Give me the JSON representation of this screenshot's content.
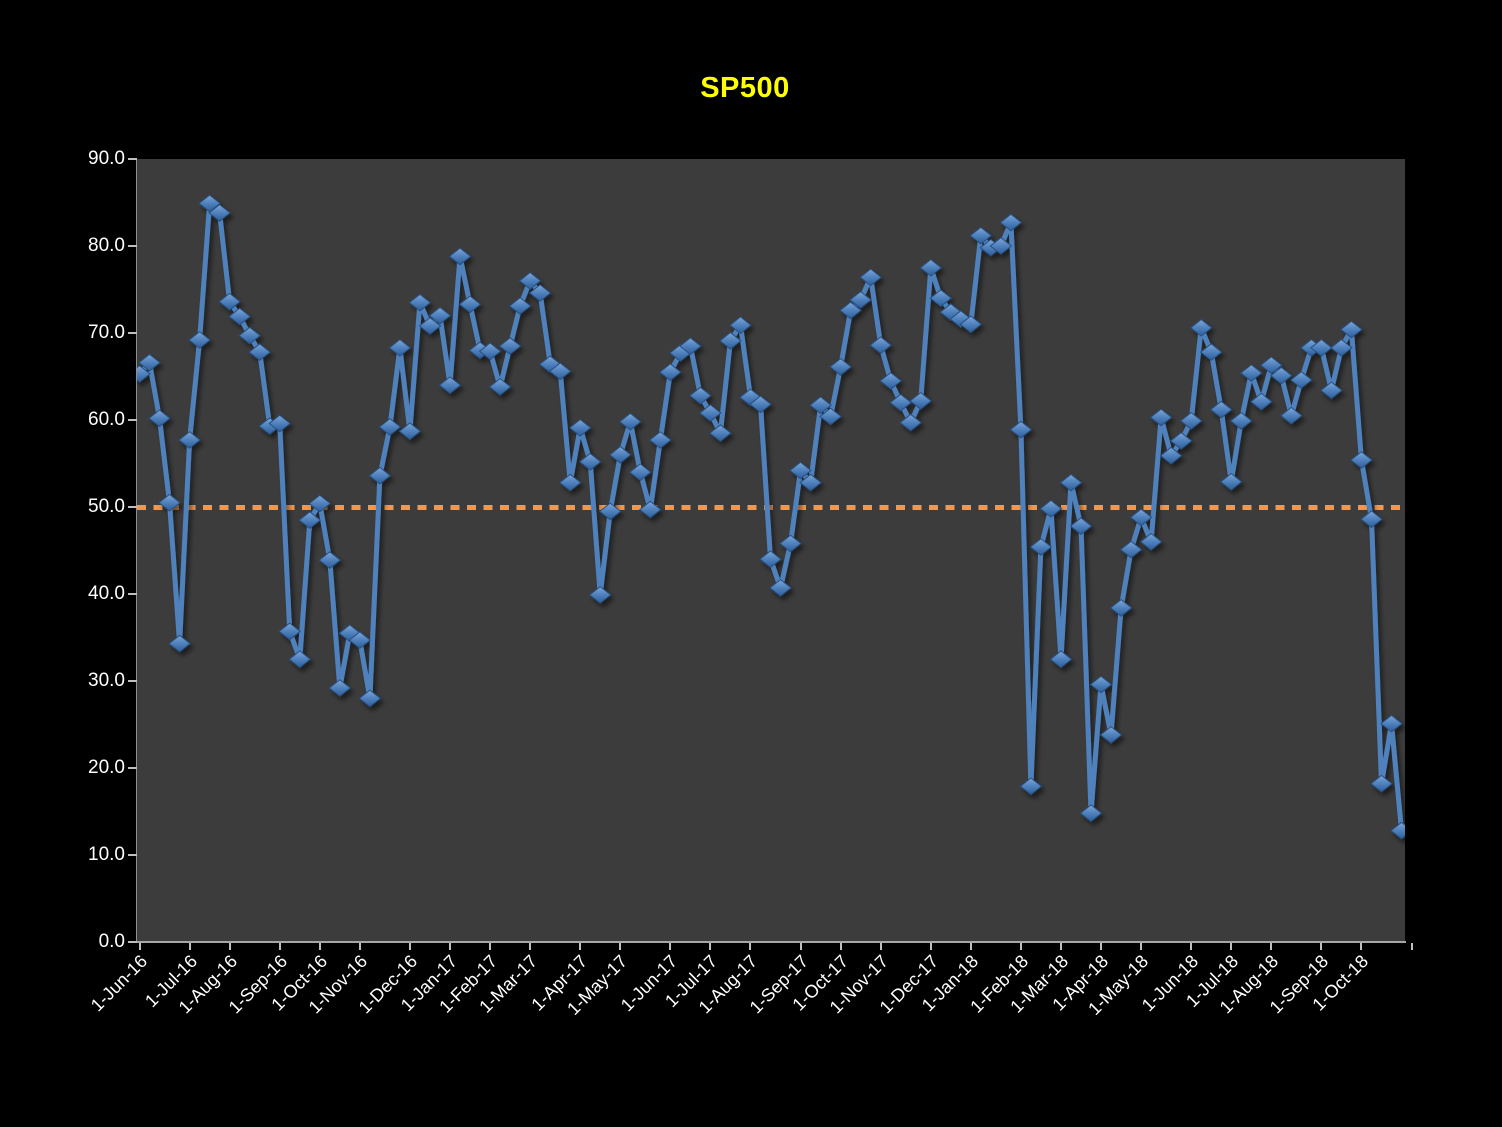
{
  "title": "SP500",
  "colors": {
    "background": "#000000",
    "plot_background": "#3c3c3c",
    "title": "#ffff00",
    "axis_text": "#ffffff",
    "axis_line": "#a6a6a6",
    "tick_mark": "#bfbfbf",
    "series_line": "#4f81bd",
    "marker_top": "#7ea6d8",
    "marker_mid": "#4f81bd",
    "marker_bottom": "#2e5d99",
    "reference_line": "#ed9853"
  },
  "chart_data": {
    "type": "line",
    "title": "SP500",
    "marker": "diamond-3d",
    "grid": false,
    "legend": "none",
    "ylim": [
      0,
      90
    ],
    "y_ticks": [
      0,
      10,
      20,
      30,
      40,
      50,
      60,
      70,
      80,
      90
    ],
    "y_tick_format": "one-decimal",
    "reference_line_y": 50.0,
    "x_frequency": "weekly",
    "x_start": "1-Jun-16",
    "x_ticks": [
      {
        "label": "1-Jun-16",
        "week": 0
      },
      {
        "label": "1-Jul-16",
        "week": 5
      },
      {
        "label": "1-Aug-16",
        "week": 9
      },
      {
        "label": "1-Sep-16",
        "week": 14
      },
      {
        "label": "1-Oct-16",
        "week": 18
      },
      {
        "label": "1-Nov-16",
        "week": 22
      },
      {
        "label": "1-Dec-16",
        "week": 27
      },
      {
        "label": "1-Jan-17",
        "week": 31
      },
      {
        "label": "1-Feb-17",
        "week": 35
      },
      {
        "label": "1-Mar-17",
        "week": 39
      },
      {
        "label": "1-Apr-17",
        "week": 44
      },
      {
        "label": "1-May-17",
        "week": 48
      },
      {
        "label": "1-Jun-17",
        "week": 53
      },
      {
        "label": "1-Jul-17",
        "week": 57
      },
      {
        "label": "1-Aug-17",
        "week": 61
      },
      {
        "label": "1-Sep-17",
        "week": 66
      },
      {
        "label": "1-Oct-17",
        "week": 70
      },
      {
        "label": "1-Nov-17",
        "week": 74
      },
      {
        "label": "1-Dec-17",
        "week": 79
      },
      {
        "label": "1-Jan-18",
        "week": 83
      },
      {
        "label": "1-Feb-18",
        "week": 88
      },
      {
        "label": "1-Mar-18",
        "week": 92
      },
      {
        "label": "1-Apr-18",
        "week": 96
      },
      {
        "label": "1-May-18",
        "week": 100
      },
      {
        "label": "1-Jun-18",
        "week": 105
      },
      {
        "label": "1-Jul-18",
        "week": 109
      },
      {
        "label": "1-Aug-18",
        "week": 113
      },
      {
        "label": "1-Sep-18",
        "week": 118
      },
      {
        "label": "1-Oct-18",
        "week": 122
      },
      {
        "label": "",
        "week": 127
      }
    ],
    "series": [
      {
        "name": "SP500",
        "values": [
          65.3,
          66.6,
          60.2,
          50.5,
          34.3,
          57.7,
          69.2,
          84.9,
          83.8,
          73.6,
          71.9,
          69.7,
          67.8,
          59.3,
          59.6,
          35.7,
          32.5,
          48.5,
          50.4,
          43.9,
          29.2,
          35.5,
          34.7,
          28.0,
          53.6,
          59.2,
          68.3,
          58.7,
          73.5,
          70.8,
          72.0,
          64.0,
          78.8,
          73.3,
          68.0,
          67.9,
          63.8,
          68.5,
          73.1,
          76.0,
          74.6,
          66.4,
          65.6,
          52.8,
          59.1,
          55.2,
          39.9,
          49.5,
          56.0,
          59.8,
          54.0,
          49.7,
          57.7,
          65.5,
          67.7,
          68.5,
          62.8,
          60.8,
          58.5,
          69.1,
          70.9,
          62.6,
          61.8,
          44.0,
          40.7,
          45.8,
          54.2,
          52.8,
          61.7,
          60.4,
          66.1,
          72.6,
          73.8,
          76.4,
          68.6,
          64.5,
          62.0,
          59.7,
          62.2,
          77.5,
          74.0,
          72.4,
          71.6,
          71.0,
          81.2,
          79.8,
          80.0,
          82.7,
          58.9,
          17.9,
          45.4,
          49.8,
          32.5,
          52.8,
          47.8,
          14.8,
          29.6,
          23.8,
          38.4,
          45.1,
          48.8,
          46.0,
          60.3,
          55.9,
          57.6,
          59.9,
          70.6,
          67.8,
          61.2,
          52.9,
          59.9,
          65.4,
          62.1,
          66.3,
          65.1,
          60.5,
          64.6,
          68.3,
          68.3,
          63.4,
          68.3,
          70.4,
          55.4,
          48.6,
          18.2,
          25.1,
          12.8
        ]
      }
    ]
  }
}
